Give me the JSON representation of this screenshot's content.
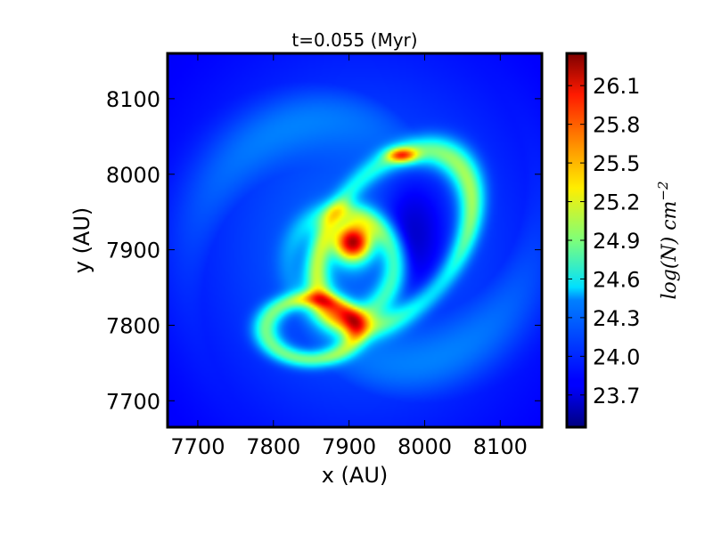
{
  "chart_data": {
    "type": "heatmap",
    "title": "t=0.055 (Myr)",
    "xlabel": "x (AU)",
    "ylabel": "y (AU)",
    "xlim": [
      7660,
      8155
    ],
    "ylim": [
      7665,
      8160
    ],
    "x_ticks": [
      7700,
      7800,
      7900,
      8000,
      8100
    ],
    "y_ticks": [
      7700,
      7800,
      7900,
      8000,
      8100
    ],
    "x_tick_labels": [
      "7700",
      "7800",
      "7900",
      "8000",
      "8100"
    ],
    "y_tick_labels": [
      "7700",
      "7800",
      "7900",
      "8000",
      "8100"
    ],
    "colormap": "jet",
    "colorbar": {
      "label": "log(N) cm^-2",
      "label_base": "log(N) cm",
      "label_exponent": "−2",
      "range": [
        23.45,
        26.35
      ],
      "ticks": [
        23.7,
        24.0,
        24.3,
        24.6,
        24.9,
        25.2,
        25.5,
        25.8,
        26.1
      ],
      "tick_labels": [
        "23.7",
        "24.0",
        "24.3",
        "24.6",
        "24.9",
        "25.2",
        "25.5",
        "25.8",
        "26.1"
      ]
    },
    "features": [
      {
        "kind": "core",
        "x": 7905,
        "y": 7910,
        "peak": 26.3
      },
      {
        "kind": "secondary-clump",
        "x": 7970,
        "y": 8025,
        "peak": 25.7
      },
      {
        "kind": "spiral-arm",
        "x": 8035,
        "y": 7895,
        "peak": 24.8
      },
      {
        "kind": "spiral-arm",
        "x": 7815,
        "y": 7800,
        "peak": 25.0
      }
    ],
    "background_level": 23.75,
    "grid": false
  }
}
